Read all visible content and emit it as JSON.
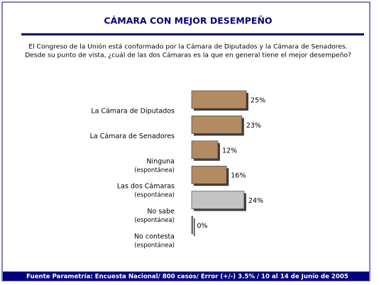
{
  "chart_data": {
    "type": "hbar",
    "title": "CÁMARA CON MEJOR DESEMPEÑO",
    "subtitle": [
      "El Congreso de la Unión está conformado por la Cámara de Diputados y la Cámara de Senadores.",
      "Desde su punto de vista, ¿cuál de las dos Cámaras es la que en general tiene el mejor desempeño?"
    ],
    "categories": [
      "La Cámara de Diputados",
      "La Cámara de Senadores",
      "Ninguna",
      "Las dos Cámaras",
      "No sabe",
      "No contesta"
    ],
    "category_notes": [
      null,
      null,
      "(espontánea)",
      "(espontánea)",
      "(espontánea)",
      "(espontánea)"
    ],
    "values": [
      25,
      23,
      12,
      16,
      24,
      0
    ],
    "value_labels": [
      "25%",
      "23%",
      "12%",
      "16%",
      "24%",
      "0%"
    ],
    "colors": [
      "#b38b62",
      "#b38b62",
      "#b38b62",
      "#b38b62",
      "#c4c4c4",
      "#707070"
    ],
    "source": "Fuente Parametría: Encuesta Nacional/ 800 casos/ Error (+/-) 3.5% / 10 al 14 de Junio de 2005"
  }
}
